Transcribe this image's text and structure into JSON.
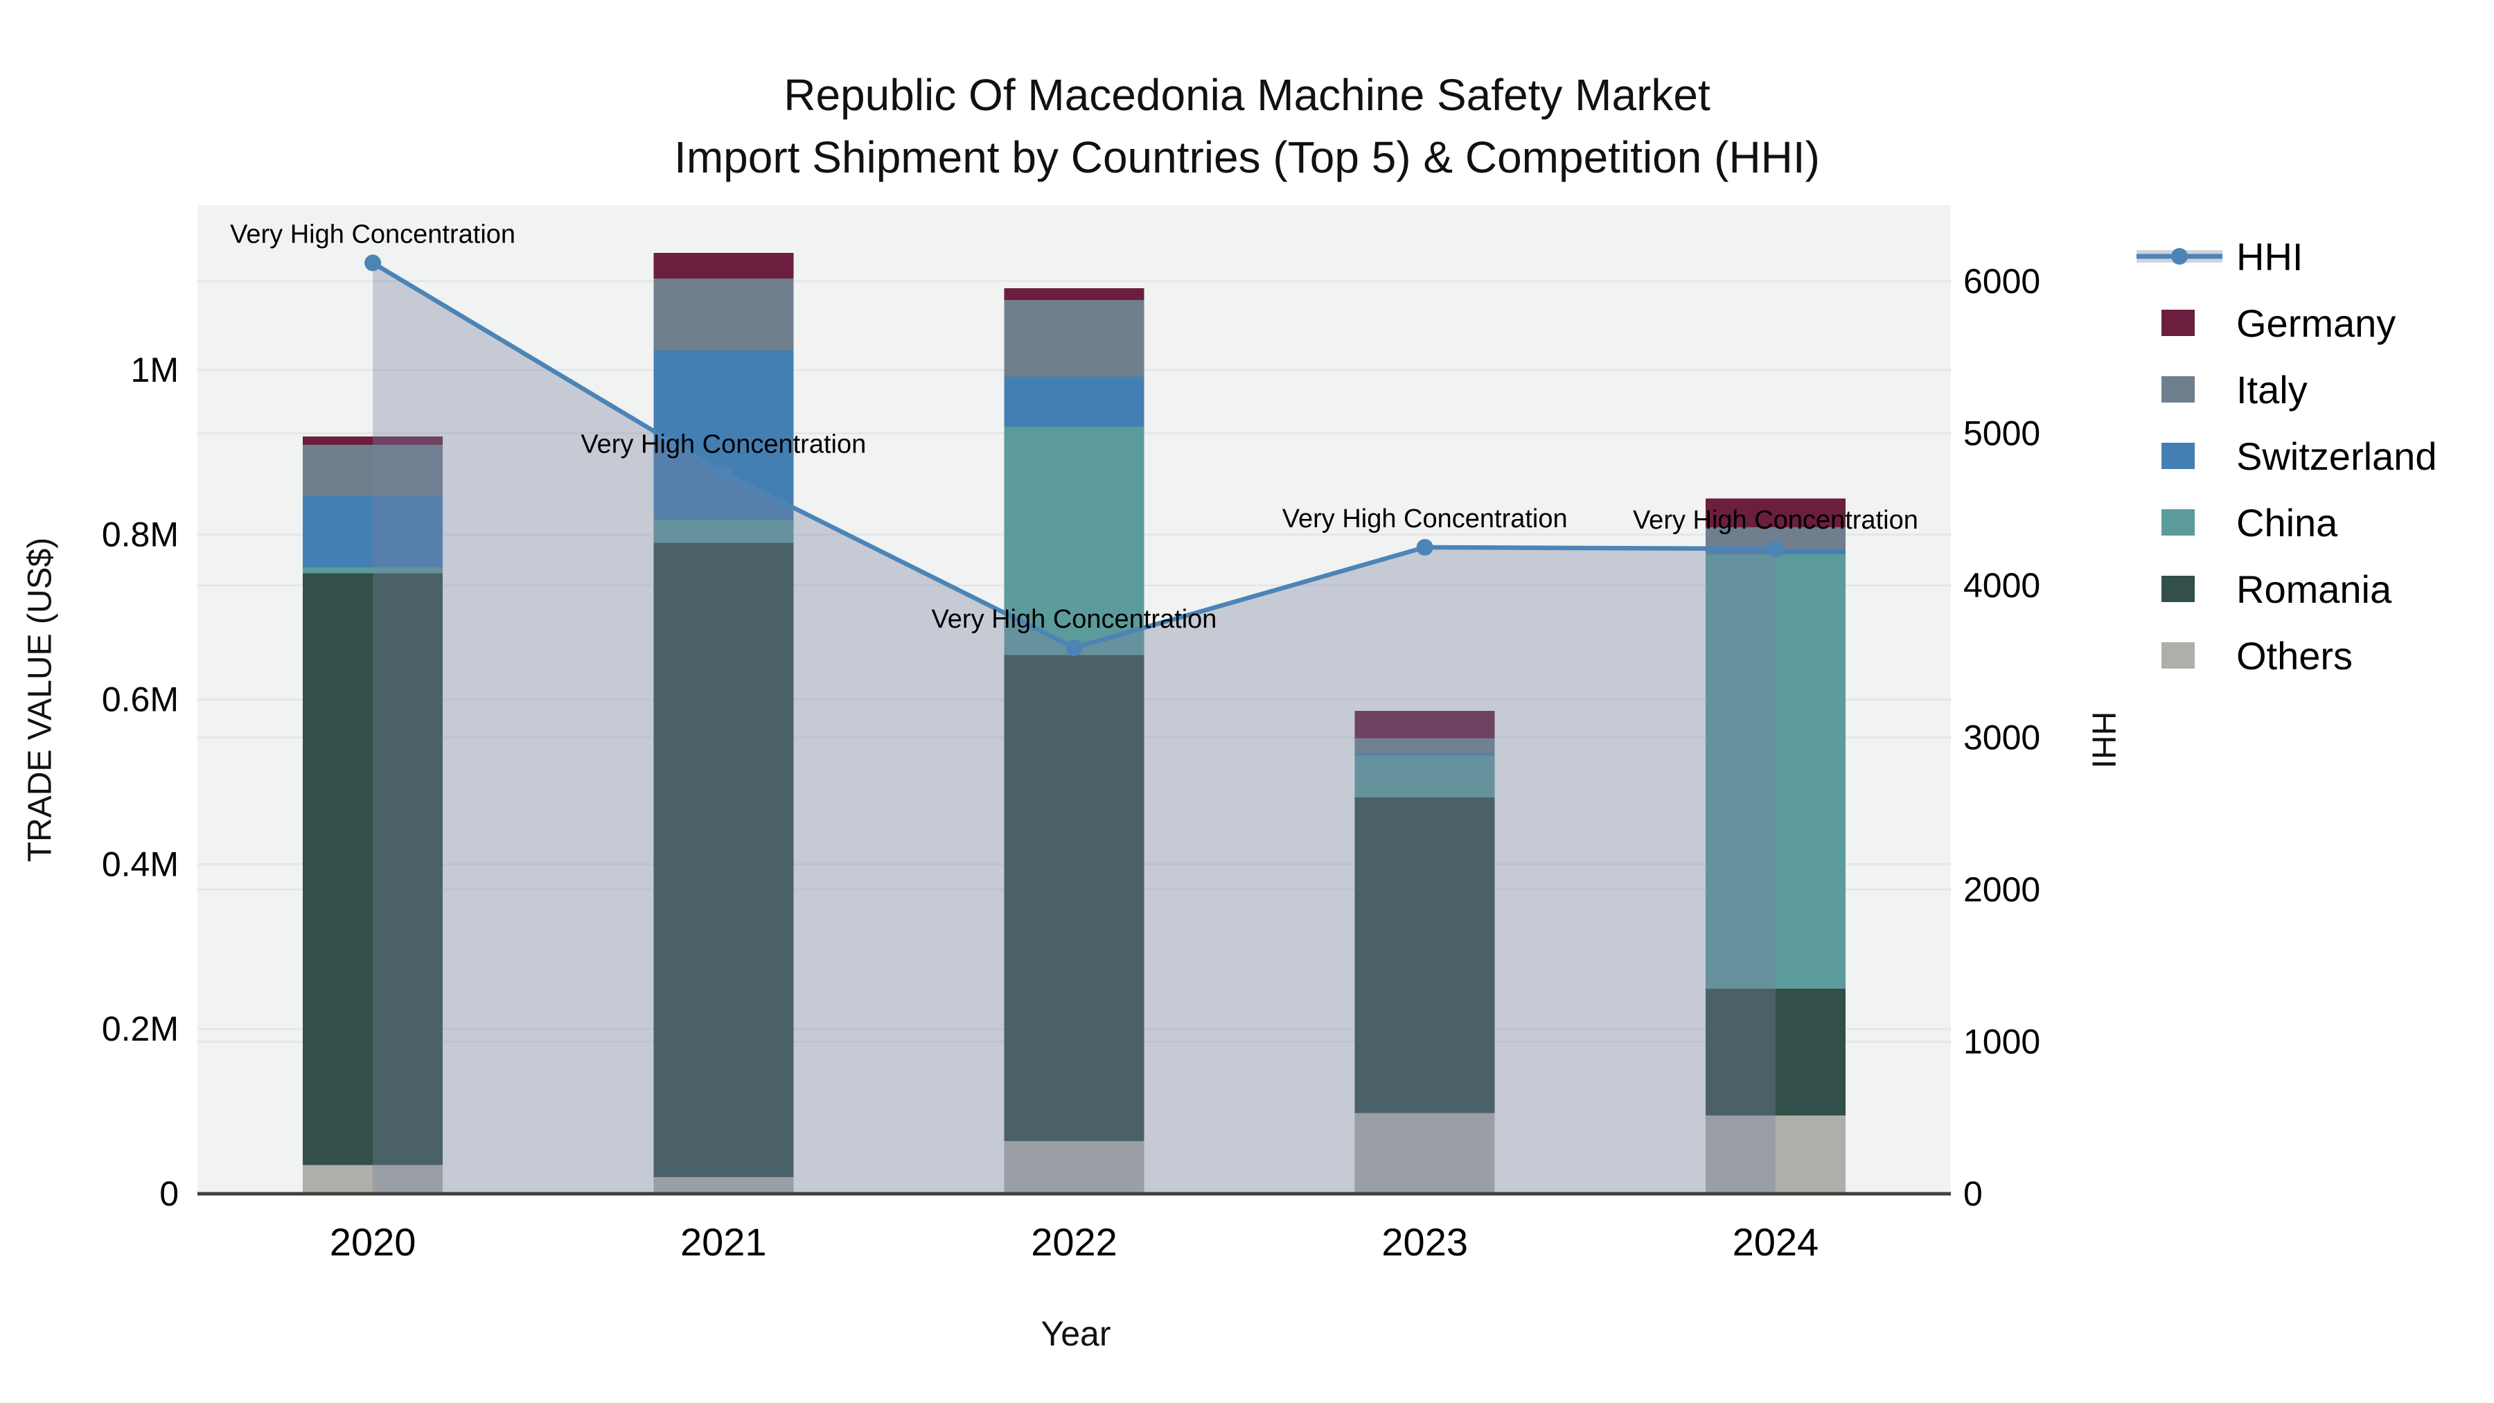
{
  "title": {
    "line1": "Republic Of Macedonia Machine Safety Market",
    "line2": "Import Shipment by Countries (Top 5) & Competition (HHI)"
  },
  "axes": {
    "x": {
      "title": "Year",
      "ticks": [
        "2020",
        "2021",
        "2022",
        "2023",
        "2024"
      ]
    },
    "y_left": {
      "title": "TRADE VALUE (US$)",
      "ticks": [
        "0",
        "0.2M",
        "0.4M",
        "0.6M",
        "0.8M",
        "1M"
      ],
      "tick_values_m": [
        0,
        0.2,
        0.4,
        0.6,
        0.8,
        1.0
      ],
      "range_m": [
        0,
        1.2
      ]
    },
    "y_right": {
      "title": "HHI",
      "ticks": [
        "0",
        "1000",
        "2000",
        "3000",
        "4000",
        "5000",
        "6000"
      ],
      "tick_values": [
        0,
        1000,
        2000,
        3000,
        4000,
        5000,
        6000
      ],
      "range": [
        0,
        6500
      ]
    }
  },
  "legend": [
    {
      "label": "HHI",
      "type": "line",
      "color": "#4c84b6"
    },
    {
      "label": "Germany",
      "type": "square",
      "color": "#6c1e3f"
    },
    {
      "label": "Italy",
      "type": "square",
      "color": "#6f7f8d"
    },
    {
      "label": "Switzerland",
      "type": "square",
      "color": "#447fb3"
    },
    {
      "label": "China",
      "type": "square",
      "color": "#5c9b9b"
    },
    {
      "label": "Romania",
      "type": "square",
      "color": "#324f4a"
    },
    {
      "label": "Others",
      "type": "square",
      "color": "#aeaeaa"
    }
  ],
  "annotation_text": "Very High Concentration",
  "chart_data": {
    "type": "bar",
    "subtype": "stacked bars with HHI line overlay (secondary axis)",
    "categories": [
      "2020",
      "2021",
      "2022",
      "2023",
      "2024"
    ],
    "value_unit": "US$ millions",
    "series": [
      {
        "name": "Others",
        "color": "#aeaeaa",
        "values": [
          0.035,
          0.02,
          0.064,
          0.098,
          0.095
        ]
      },
      {
        "name": "Romania",
        "color": "#324f4a",
        "values": [
          0.718,
          0.77,
          0.59,
          0.383,
          0.154
        ]
      },
      {
        "name": "China",
        "color": "#5c9b9b",
        "values": [
          0.007,
          0.028,
          0.277,
          0.051,
          0.527
        ]
      },
      {
        "name": "Switzerland",
        "color": "#447fb3",
        "values": [
          0.087,
          0.206,
          0.061,
          0.003,
          0.006
        ]
      },
      {
        "name": "Italy",
        "color": "#6f7f8d",
        "values": [
          0.062,
          0.087,
          0.093,
          0.018,
          0.027
        ]
      },
      {
        "name": "Germany",
        "color": "#6c1e3f",
        "values": [
          0.01,
          0.031,
          0.014,
          0.033,
          0.035
        ]
      }
    ],
    "bar_totals_m": [
      0.919,
      1.142,
      1.099,
      0.586,
      0.844
    ],
    "hhi": {
      "name": "HHI",
      "color": "#4c84b6",
      "fill_color": "rgba(118,130,158,0.36)",
      "values": [
        6120,
        4740,
        3590,
        4250,
        4240
      ],
      "point_labels": [
        "Very High Concentration",
        "Very High Concentration",
        "Very High Concentration",
        "Very High Concentration",
        "Very High Concentration"
      ]
    },
    "layout_hints": {
      "grid": "both axes, light gray",
      "legend_position": "right",
      "plot_bg": "#f1f2f2"
    }
  }
}
